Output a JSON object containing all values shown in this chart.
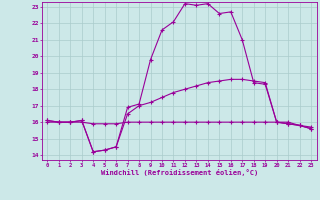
{
  "xlabel": "Windchill (Refroidissement éolien,°C)",
  "bg_color": "#cce8e8",
  "line_color": "#990099",
  "grid_color": "#aacccc",
  "xlim": [
    -0.5,
    23.5
  ],
  "ylim": [
    13.7,
    23.3
  ],
  "xticks": [
    0,
    1,
    2,
    3,
    4,
    5,
    6,
    7,
    8,
    9,
    10,
    11,
    12,
    13,
    14,
    15,
    16,
    17,
    18,
    19,
    20,
    21,
    22,
    23
  ],
  "yticks": [
    14,
    15,
    16,
    17,
    18,
    19,
    20,
    21,
    22,
    23
  ],
  "line1_x": [
    0,
    1,
    2,
    3,
    4,
    5,
    6,
    7,
    8,
    9,
    10,
    11,
    12,
    13,
    14,
    15,
    16,
    17,
    18,
    19,
    20,
    21,
    22,
    23
  ],
  "line1_y": [
    16.0,
    16.0,
    16.0,
    16.0,
    15.9,
    15.9,
    15.9,
    16.0,
    16.0,
    16.0,
    16.0,
    16.0,
    16.0,
    16.0,
    16.0,
    16.0,
    16.0,
    16.0,
    16.0,
    16.0,
    16.0,
    15.9,
    15.8,
    15.7
  ],
  "line2_x": [
    0,
    1,
    2,
    3,
    4,
    5,
    6,
    7,
    8,
    9,
    10,
    11,
    12,
    13,
    14,
    15,
    16,
    17,
    18,
    19,
    20,
    21,
    22,
    23
  ],
  "line2_y": [
    16.1,
    16.0,
    16.0,
    16.1,
    14.2,
    14.3,
    14.5,
    16.9,
    17.1,
    19.8,
    21.6,
    22.1,
    23.2,
    23.1,
    23.2,
    22.6,
    22.7,
    21.0,
    18.4,
    18.3,
    16.0,
    16.0,
    15.8,
    15.6
  ],
  "line3_x": [
    0,
    1,
    2,
    3,
    4,
    5,
    6,
    7,
    8,
    9,
    10,
    11,
    12,
    13,
    14,
    15,
    16,
    17,
    18,
    19,
    20,
    21,
    22,
    23
  ],
  "line3_y": [
    16.1,
    16.0,
    16.0,
    16.1,
    14.2,
    14.3,
    14.5,
    16.5,
    17.0,
    17.2,
    17.5,
    17.8,
    18.0,
    18.2,
    18.4,
    18.5,
    18.6,
    18.6,
    18.5,
    18.4,
    16.0,
    15.9,
    15.8,
    15.6
  ]
}
